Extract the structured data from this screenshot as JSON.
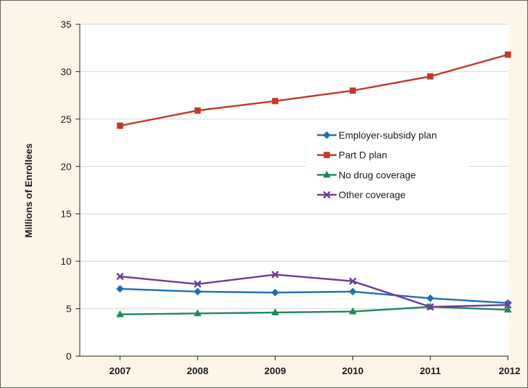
{
  "chart_data": {
    "type": "line",
    "x": [
      "2007",
      "2008",
      "2009",
      "2010",
      "2011",
      "2012"
    ],
    "ylabel": "Millions of Enrollees",
    "ylim": [
      0,
      35
    ],
    "yticks": [
      "0",
      "5",
      "10",
      "15",
      "20",
      "25",
      "30",
      "35"
    ],
    "grid": "horizontal",
    "legend_placement": "center-right",
    "series": [
      {
        "name": "Employer-subsidy plan",
        "color": "#1f6fb4",
        "marker": "diamond",
        "values": [
          7.1,
          6.8,
          6.7,
          6.8,
          6.1,
          5.6
        ]
      },
      {
        "name": "Part D plan",
        "color": "#c0392b",
        "marker": "square",
        "values": [
          24.3,
          25.9,
          26.9,
          28.0,
          29.5,
          31.8
        ]
      },
      {
        "name": "No drug coverage",
        "color": "#1e8a57",
        "marker": "triangle",
        "values": [
          4.4,
          4.5,
          4.6,
          4.7,
          5.2,
          4.9
        ]
      },
      {
        "name": "Other coverage",
        "color": "#6c3d99",
        "marker": "x",
        "values": [
          8.4,
          7.6,
          8.6,
          7.9,
          5.2,
          5.4
        ]
      }
    ]
  }
}
